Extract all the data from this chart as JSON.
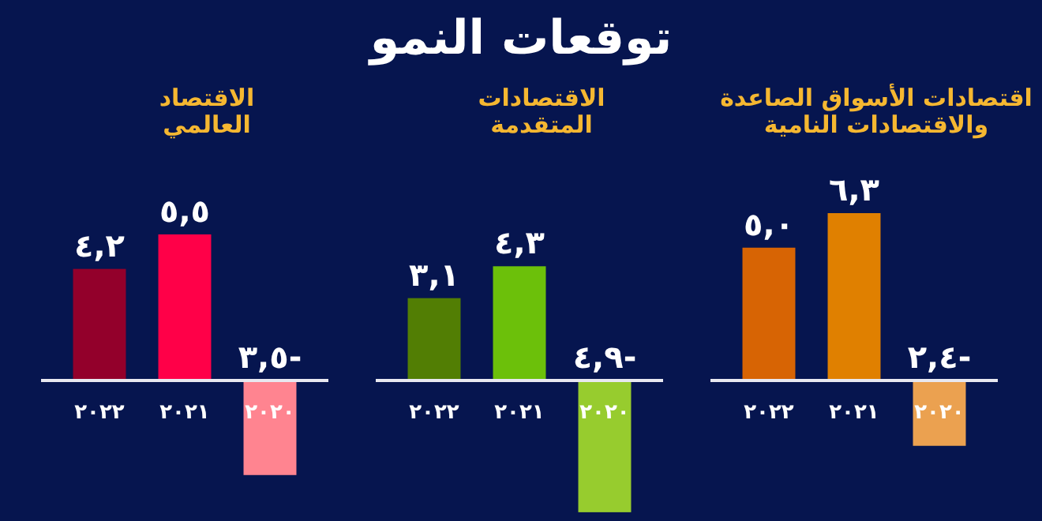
{
  "chart_data": [
    {
      "type": "other",
      "title": "توقعات النمو"
    },
    {
      "type": "bar",
      "title": "اقتصادات الأسواق الصاعدة\nوالاقتصادات النامية",
      "categories": [
        "٢٠٢٢",
        "٢٠٢١",
        "٢٠٢٠"
      ],
      "values": [
        5.0,
        6.3,
        -2.4
      ],
      "colors": [
        "#d76404",
        "#e08000",
        "#eba150"
      ],
      "value_labels": [
        "٥,٠",
        "٦,٣",
        "-٢,٤"
      ]
    },
    {
      "type": "bar",
      "title": "الاقتصادات\nالمتقدمة",
      "categories": [
        "٢٠٢٢",
        "٢٠٢١",
        "٢٠٢٠"
      ],
      "values": [
        3.1,
        4.3,
        -4.9
      ],
      "colors": [
        "#527e04",
        "#6cc00a",
        "#97cc2e"
      ],
      "value_labels": [
        "٣,١",
        "٤,٣",
        "-٤,٩"
      ]
    },
    {
      "type": "bar",
      "title": "الاقتصاد\nالعالمي",
      "categories": [
        "٢٠٢٢",
        "٢٠٢١",
        "٢٠٢٠"
      ],
      "values": [
        4.2,
        5.5,
        -3.5
      ],
      "colors": [
        "#93002b",
        "#ff0048",
        "#ff8490"
      ],
      "value_labels": [
        "٤,٢",
        "٥,٥",
        "-٣,٥"
      ]
    }
  ]
}
